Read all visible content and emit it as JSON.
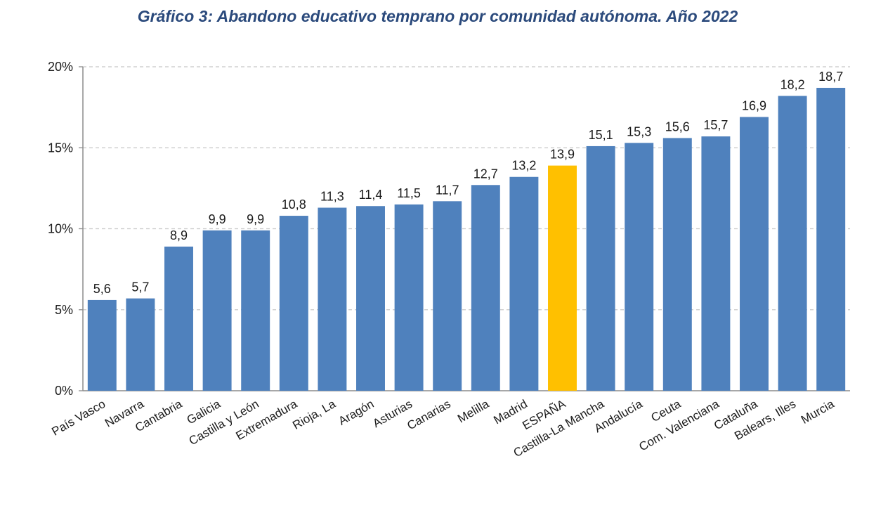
{
  "chart_data": {
    "type": "bar",
    "title": "Gráfico 3: Abandono educativo temprano por comunidad autónoma. Año 2022",
    "xlabel": "",
    "ylabel": "",
    "ylim": [
      0,
      20
    ],
    "yticks": [
      0,
      5,
      10,
      15,
      20
    ],
    "ytick_labels": [
      "0%",
      "5%",
      "10%",
      "15%",
      "20%"
    ],
    "grid": true,
    "legend": "none",
    "categories": [
      "País Vasco",
      "Navarra",
      "Cantabria",
      "Galicia",
      "Castilla y León",
      "Extremadura",
      "Rioja, La",
      "Aragón",
      "Asturias",
      "Canarias",
      "Melilla",
      "Madrid",
      "ESPAÑA",
      "Castilla-La Mancha",
      "Andalucía",
      "Ceuta",
      "Com. Valenciana",
      "Cataluña",
      "Balears, Illes",
      "Murcia"
    ],
    "values": [
      5.6,
      5.7,
      8.9,
      9.9,
      9.9,
      10.8,
      11.3,
      11.4,
      11.5,
      11.7,
      12.7,
      13.2,
      13.9,
      15.1,
      15.3,
      15.6,
      15.7,
      16.9,
      18.2,
      18.7
    ],
    "value_labels": [
      "5,6",
      "5,7",
      "8,9",
      "9,9",
      "9,9",
      "10,8",
      "11,3",
      "11,4",
      "11,5",
      "11,7",
      "12,7",
      "13,2",
      "13,9",
      "15,1",
      "15,3",
      "15,6",
      "15,7",
      "16,9",
      "18,2",
      "18,7"
    ],
    "highlight_category": "ESPAÑA",
    "colors": {
      "bar": "#4f81bd",
      "highlight": "#ffc000",
      "grid": "#c8c8c8",
      "axis": "#8c8c8c",
      "title": "#2b4a7c"
    }
  }
}
